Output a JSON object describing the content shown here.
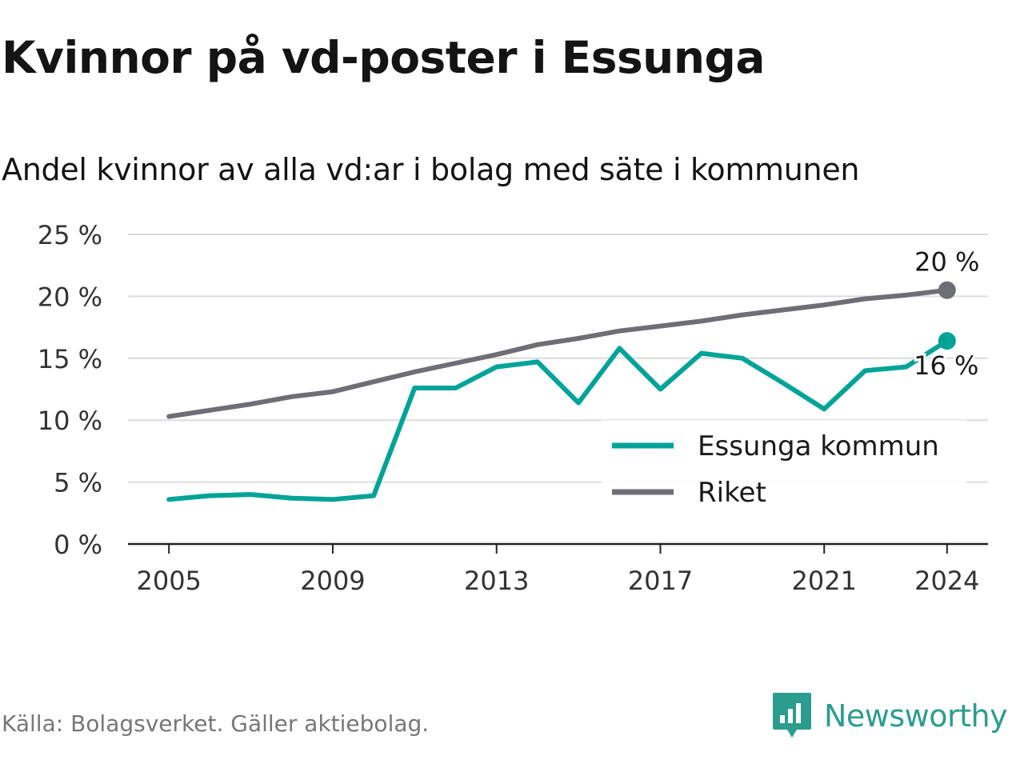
{
  "title": "Kvinnor på vd-poster i Essunga",
  "subtitle": "Andel kvinnor av alla vd:ar i bolag med säte i kommunen",
  "source": "Källa: Bolagsverket. Gäller aktiebolag.",
  "brand": "Newsworthy",
  "brand_icon": "newsworthy-logo-icon",
  "colors": {
    "essunga": "#00a398",
    "riket": "#6e6e76",
    "grid": "#dcdcdc",
    "brand": "#2a9d8f"
  },
  "chart_data": {
    "type": "line",
    "x": [
      2005,
      2006,
      2007,
      2008,
      2009,
      2010,
      2011,
      2012,
      2013,
      2014,
      2015,
      2016,
      2017,
      2018,
      2019,
      2020,
      2021,
      2022,
      2023,
      2024
    ],
    "x_ticks": [
      2005,
      2009,
      2013,
      2017,
      2021,
      2024
    ],
    "y_ticks": [
      0,
      5,
      10,
      15,
      20,
      25
    ],
    "y_tick_labels": [
      "0 %",
      "5 %",
      "10 %",
      "15 %",
      "20 %",
      "25 %"
    ],
    "ylim": [
      0,
      25
    ],
    "grid": true,
    "legend_position": "bottom-right",
    "series": [
      {
        "name": "Essunga kommun",
        "color": "#00a398",
        "values": [
          3.6,
          3.9,
          4.0,
          3.7,
          3.6,
          3.9,
          12.6,
          12.6,
          14.3,
          14.7,
          11.4,
          15.8,
          12.5,
          15.4,
          15.0,
          13.0,
          10.9,
          14.0,
          14.3,
          16.4
        ],
        "end_label": "16 %"
      },
      {
        "name": "Riket",
        "color": "#6e6e76",
        "values": [
          10.3,
          10.8,
          11.3,
          11.9,
          12.3,
          13.1,
          13.9,
          14.6,
          15.3,
          16.1,
          16.6,
          17.2,
          17.6,
          18.0,
          18.5,
          18.9,
          19.3,
          19.8,
          20.1,
          20.5
        ],
        "end_label": "20 %"
      }
    ]
  }
}
